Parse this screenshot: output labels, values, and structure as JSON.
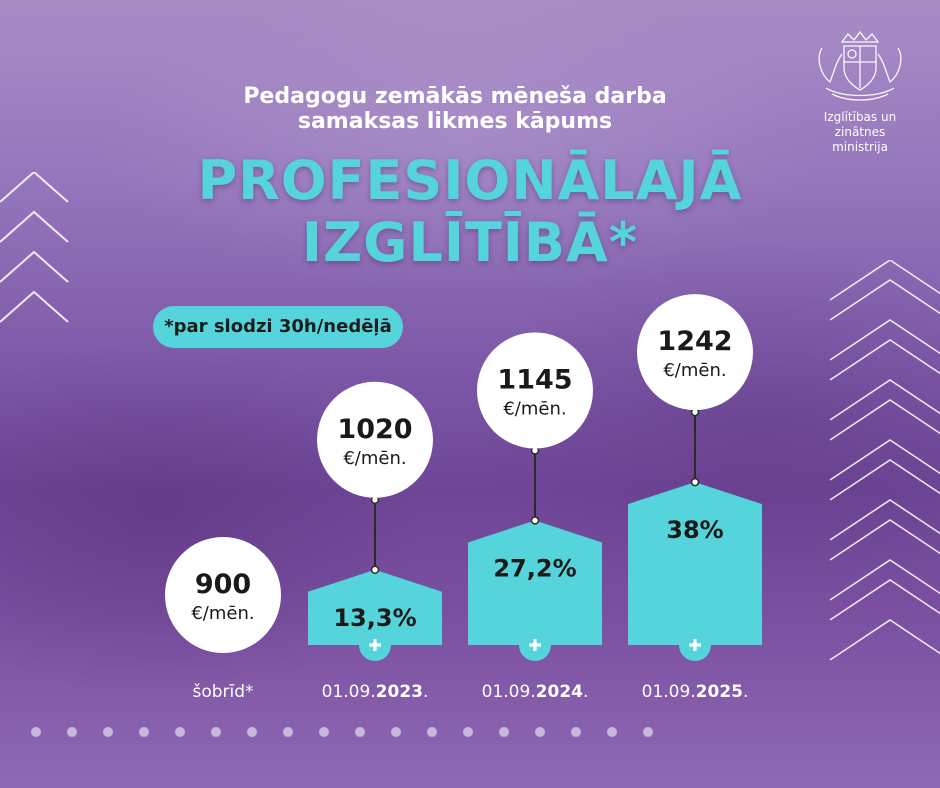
{
  "header": {
    "subtitle": "Pedagogu zemākās mēneša darba samaksas likmes kāpums",
    "title_line1": "PROFESIONĀLAJĀ",
    "title_line2": "IZGLĪTĪBĀ*",
    "note": "*par slodzi 30h/nedēļā"
  },
  "logo": {
    "icon": "latvia-coat-of-arms-icon",
    "line1": "Izglītības un zinātnes",
    "line2": "ministrija"
  },
  "colors": {
    "accent": "#56d4dc",
    "text_dark": "#1a1a1a",
    "white": "#ffffff"
  },
  "chart_data": {
    "type": "bar",
    "categories": [
      "šobrīd*",
      "01.09.2023.",
      "01.09.2024.",
      "01.09.2025."
    ],
    "category_display": [
      {
        "prefix": "šobrīd*",
        "bold": ""
      },
      {
        "prefix": "01.09.",
        "bold": "2023",
        "suffix": "."
      },
      {
        "prefix": "01.09.",
        "bold": "2024",
        "suffix": "."
      },
      {
        "prefix": "01.09.",
        "bold": "2025",
        "suffix": "."
      }
    ],
    "values": [
      900,
      1020,
      1145,
      1242
    ],
    "value_labels": [
      "900",
      "1020",
      "1145",
      "1242"
    ],
    "unit": "€/mēn.",
    "increase_labels": [
      "",
      "13,3%",
      "27,2%",
      "38%"
    ],
    "increase_values": [
      0,
      13.3,
      27.2,
      38
    ],
    "ylim": [
      0,
      40
    ]
  }
}
